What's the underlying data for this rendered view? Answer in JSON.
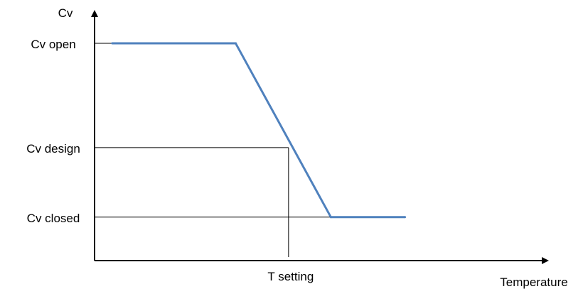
{
  "chart_data": {
    "type": "line",
    "title": "",
    "xlabel": "Temperature",
    "ylabel": "Cv",
    "y_levels": [
      {
        "name": "closed",
        "label": "Cv closed",
        "value": 0
      },
      {
        "name": "design",
        "label": "Cv design",
        "value": 0.4
      },
      {
        "name": "open",
        "label": "Cv open",
        "value": 1
      }
    ],
    "x_marker": {
      "label": "T setting",
      "value": 0.55,
      "y": 0.4
    },
    "series": [
      {
        "color": "#4f81bd",
        "points": [
          {
            "x": 0.05,
            "y": 1
          },
          {
            "x": 0.4,
            "y": 1
          },
          {
            "x": 0.67,
            "y": 0
          },
          {
            "x": 0.88,
            "y": 0
          }
        ]
      }
    ],
    "xlim": [
      0,
      1.28
    ],
    "ylim": [
      -0.25,
      1.2
    ],
    "grid": false,
    "axis_color": "#000000"
  }
}
